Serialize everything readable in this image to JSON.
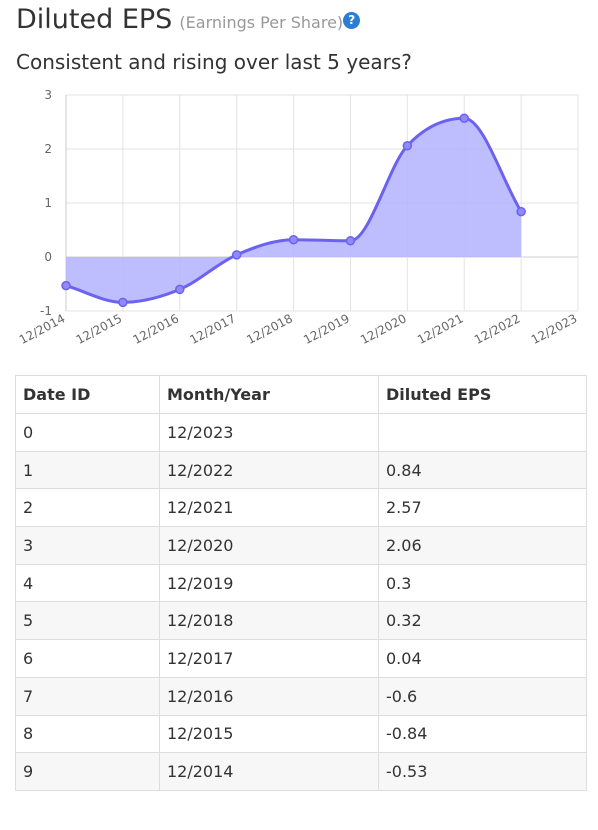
{
  "header": {
    "title": "Diluted EPS",
    "subtitle": "(Earnings Per Share)",
    "help_icon": "question-circle-icon",
    "question": "Consistent and rising over last 5 years?"
  },
  "colors": {
    "accent": "#2a7fd4",
    "series_line": "#6b63f0",
    "series_fill": "#b3b3ff",
    "grid": "#e3e3e3"
  },
  "chart_data": {
    "type": "area",
    "title": "",
    "xlabel": "",
    "ylabel": "",
    "categories": [
      "12/2014",
      "12/2015",
      "12/2016",
      "12/2017",
      "12/2018",
      "12/2019",
      "12/2020",
      "12/2021",
      "12/2022",
      "12/2023"
    ],
    "series": [
      {
        "values": [
          -0.53,
          -0.84,
          -0.6,
          0.04,
          0.32,
          0.3,
          2.06,
          2.57,
          0.84,
          null
        ]
      }
    ],
    "ylim": [
      -1,
      3
    ],
    "yticks": [
      -1,
      0,
      1,
      2,
      3
    ],
    "grid": true,
    "smooth": true,
    "legend": "none"
  },
  "table": {
    "headers": [
      "Date ID",
      "Month/Year",
      "Diluted EPS"
    ],
    "rows": [
      [
        "0",
        "12/2023",
        ""
      ],
      [
        "1",
        "12/2022",
        "0.84"
      ],
      [
        "2",
        "12/2021",
        "2.57"
      ],
      [
        "3",
        "12/2020",
        "2.06"
      ],
      [
        "4",
        "12/2019",
        "0.3"
      ],
      [
        "5",
        "12/2018",
        "0.32"
      ],
      [
        "6",
        "12/2017",
        "0.04"
      ],
      [
        "7",
        "12/2016",
        "-0.6"
      ],
      [
        "8",
        "12/2015",
        "-0.84"
      ],
      [
        "9",
        "12/2014",
        "-0.53"
      ]
    ]
  }
}
